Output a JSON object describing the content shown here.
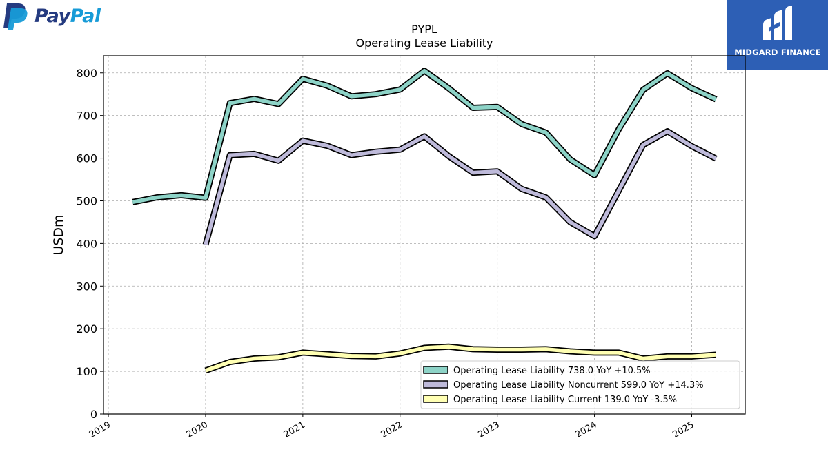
{
  "branding": {
    "paypal_logo_text_1": "Pay",
    "paypal_logo_text_2": "Pal",
    "midgard_logo_text": "MIDGARD FINANCE"
  },
  "colors": {
    "paypal_dark": "#253b80",
    "paypal_light": "#179bd7",
    "midgard_bg": "#2d5fb5"
  },
  "chart_data": {
    "type": "line",
    "title": "PYPL",
    "subtitle": "Operating Lease Liability",
    "xlabel": "",
    "ylabel": "USDm",
    "xlim": [
      2018.95,
      2025.55
    ],
    "ylim": [
      0,
      840
    ],
    "yticks": [
      0,
      100,
      200,
      300,
      400,
      500,
      600,
      700,
      800
    ],
    "xticks": [
      2019,
      2020,
      2021,
      2022,
      2023,
      2024,
      2025
    ],
    "xtick_labels": [
      "2019",
      "2020",
      "2021",
      "2022",
      "2023",
      "2024",
      "2025"
    ],
    "grid": true,
    "legend_position": "lower-right",
    "series": [
      {
        "name": "Operating Lease Liability",
        "legend_label": "Operating Lease Liability  738.0 YoY +10.5%",
        "color": "#8dd3c7",
        "x": [
          2019.25,
          2019.5,
          2019.75,
          2020.0,
          2020.25,
          2020.5,
          2020.75,
          2021.0,
          2021.25,
          2021.5,
          2021.75,
          2022.0,
          2022.25,
          2022.5,
          2022.75,
          2023.0,
          2023.25,
          2023.5,
          2023.75,
          2024.0,
          2024.25,
          2024.5,
          2024.75,
          2025.0,
          2025.25
        ],
        "y": [
          497,
          508,
          513,
          507,
          729,
          739,
          727,
          786,
          770,
          745,
          750,
          761,
          805,
          764,
          718,
          720,
          680,
          660,
          597,
          560,
          668,
          760,
          799,
          764,
          738
        ]
      },
      {
        "name": "Operating Lease Liability Noncurrent",
        "legend_label": "Operating Lease Liability Noncurrent  599.0 YoY +14.3%",
        "color": "#bebada",
        "x": [
          2020.0,
          2020.25,
          2020.5,
          2020.75,
          2021.0,
          2021.25,
          2021.5,
          2021.75,
          2022.0,
          2022.25,
          2022.5,
          2022.75,
          2023.0,
          2023.25,
          2023.5,
          2023.75,
          2024.0,
          2024.25,
          2024.5,
          2024.75,
          2025.0,
          2025.25
        ],
        "y": [
          397,
          607,
          610,
          594,
          641,
          629,
          607,
          615,
          620,
          651,
          605,
          566,
          569,
          528,
          508,
          450,
          417,
          524,
          631,
          663,
          628,
          599
        ]
      },
      {
        "name": "Operating Lease Liability Current",
        "legend_label": "Operating Lease Liability Current  139.0 YoY -3.5%",
        "color": "#ffffb3",
        "x": [
          2020.0,
          2020.25,
          2020.5,
          2020.75,
          2021.0,
          2021.25,
          2021.5,
          2021.75,
          2022.0,
          2022.25,
          2022.5,
          2022.75,
          2023.0,
          2023.25,
          2023.5,
          2023.75,
          2024.0,
          2024.25,
          2024.5,
          2024.75,
          2025.0,
          2025.25
        ],
        "y": [
          102,
          122,
          130,
          133,
          144,
          140,
          136,
          135,
          142,
          155,
          158,
          152,
          151,
          151,
          152,
          147,
          144,
          144,
          130,
          135,
          135,
          139
        ]
      }
    ]
  }
}
